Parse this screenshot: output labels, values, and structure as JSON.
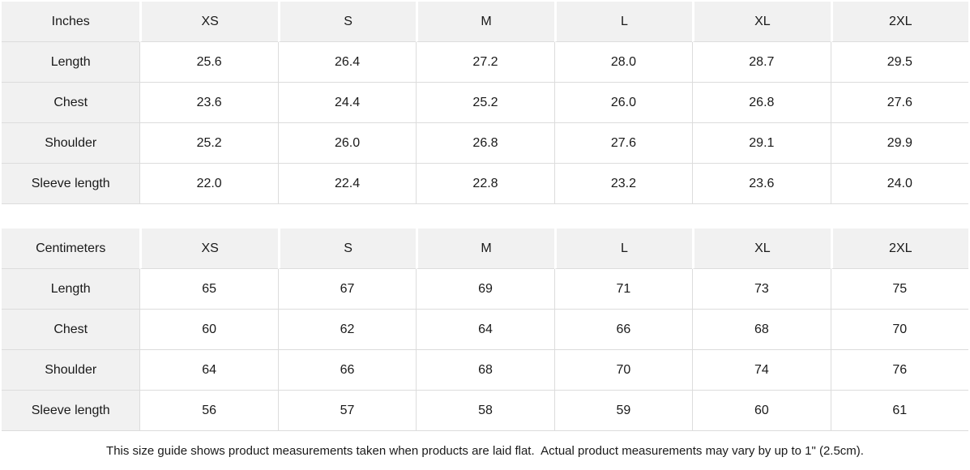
{
  "colors": {
    "background": "#ffffff",
    "header_bg": "#f1f1f1",
    "grid_line": "#dcdcdc",
    "text": "#1a1a1a"
  },
  "tables": [
    {
      "unit_label": "Inches",
      "sizes": [
        "XS",
        "S",
        "M",
        "L",
        "XL",
        "2XL"
      ],
      "rows": [
        {
          "label": "Length",
          "values": [
            "25.6",
            "26.4",
            "27.2",
            "28.0",
            "28.7",
            "29.5"
          ]
        },
        {
          "label": "Chest",
          "values": [
            "23.6",
            "24.4",
            "25.2",
            "26.0",
            "26.8",
            "27.6"
          ]
        },
        {
          "label": "Shoulder",
          "values": [
            "25.2",
            "26.0",
            "26.8",
            "27.6",
            "29.1",
            "29.9"
          ]
        },
        {
          "label": "Sleeve length",
          "values": [
            "22.0",
            "22.4",
            "22.8",
            "23.2",
            "23.6",
            "24.0"
          ]
        }
      ]
    },
    {
      "unit_label": "Centimeters",
      "sizes": [
        "XS",
        "S",
        "M",
        "L",
        "XL",
        "2XL"
      ],
      "rows": [
        {
          "label": "Length",
          "values": [
            "65",
            "67",
            "69",
            "71",
            "73",
            "75"
          ]
        },
        {
          "label": "Chest",
          "values": [
            "60",
            "62",
            "64",
            "66",
            "68",
            "70"
          ]
        },
        {
          "label": "Shoulder",
          "values": [
            "64",
            "66",
            "68",
            "70",
            "74",
            "76"
          ]
        },
        {
          "label": "Sleeve length",
          "values": [
            "56",
            "57",
            "58",
            "59",
            "60",
            "61"
          ]
        }
      ]
    }
  ],
  "footer": {
    "note": "This size guide shows product measurements taken when products are laid flat.  Actual product measurements may vary by up to 1\" (2.5cm)."
  },
  "chart_data": [
    {
      "type": "table",
      "title": "Inches",
      "columns": [
        "Inches",
        "XS",
        "S",
        "M",
        "L",
        "XL",
        "2XL"
      ],
      "rows": [
        [
          "Length",
          25.6,
          26.4,
          27.2,
          28.0,
          28.7,
          29.5
        ],
        [
          "Chest",
          23.6,
          24.4,
          25.2,
          26.0,
          26.8,
          27.6
        ],
        [
          "Shoulder",
          25.2,
          26.0,
          26.8,
          27.6,
          29.1,
          29.9
        ],
        [
          "Sleeve length",
          22.0,
          22.4,
          22.8,
          23.2,
          23.6,
          24.0
        ]
      ]
    },
    {
      "type": "table",
      "title": "Centimeters",
      "columns": [
        "Centimeters",
        "XS",
        "S",
        "M",
        "L",
        "XL",
        "2XL"
      ],
      "rows": [
        [
          "Length",
          65,
          67,
          69,
          71,
          73,
          75
        ],
        [
          "Chest",
          60,
          62,
          64,
          66,
          68,
          70
        ],
        [
          "Shoulder",
          64,
          66,
          68,
          70,
          74,
          76
        ],
        [
          "Sleeve length",
          56,
          57,
          58,
          59,
          60,
          61
        ]
      ]
    }
  ]
}
